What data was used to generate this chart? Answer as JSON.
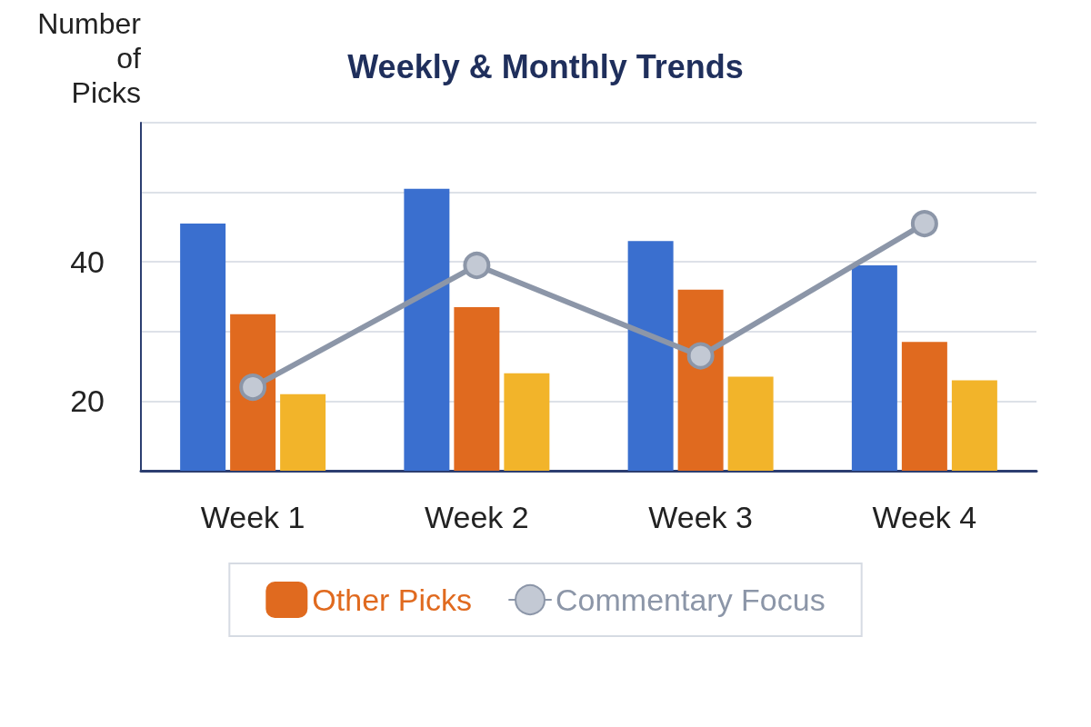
{
  "chart_data": {
    "type": "bar",
    "title": "Weekly & Monthly Trends",
    "ylabel": "Number of Picks",
    "categories": [
      "Week 1",
      "Week 2",
      "Week 3",
      "Week 4"
    ],
    "series": [
      {
        "color": "#3a6fcf",
        "values": [
          45.5,
          50.5,
          43,
          39.5
        ]
      },
      {
        "name": "Other Picks",
        "color": "#e06a1f",
        "values": [
          32.5,
          33.5,
          36,
          28.5
        ]
      },
      {
        "color": "#f2b42a",
        "values": [
          21,
          24,
          23.5,
          23
        ]
      },
      {
        "name": "Commentary Focus",
        "type": "line",
        "color": "#8c96a8",
        "values": [
          22,
          39.5,
          26.5,
          45.5
        ],
        "marker": "circle"
      }
    ],
    "ylim": [
      10,
      60
    ],
    "yticks": [
      20,
      {
        "value": 30,
        "label": null
      },
      40,
      {
        "value": 50,
        "label": null
      },
      {
        "value": 60,
        "label": null
      }
    ],
    "grid": "y",
    "legend": "bottom"
  }
}
